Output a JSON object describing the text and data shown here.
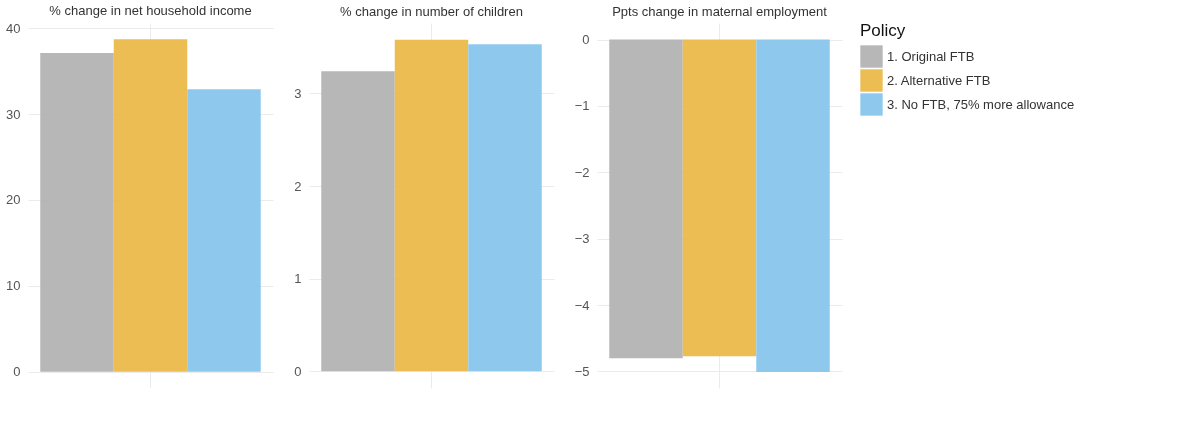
{
  "chart_data": [
    {
      "type": "bar",
      "title": "% change in net household income",
      "categories": [
        null
      ],
      "ylim": [
        -1.9,
        40.6
      ],
      "yticks": [
        0,
        10,
        20,
        30,
        40
      ],
      "grid": true,
      "series": [
        {
          "color": "#b3b3b3",
          "values": [
            37.1
          ]
        },
        {
          "color": "#ebb94a",
          "values": [
            38.7
          ]
        },
        {
          "color": "#88c6ec",
          "values": [
            32.9
          ]
        }
      ]
    },
    {
      "type": "bar",
      "title": "% change in number of children",
      "categories": [
        null
      ],
      "ylim": [
        -0.18,
        3.76
      ],
      "yticks": [
        0,
        1,
        2,
        3
      ],
      "grid": true,
      "series": [
        {
          "color": "#b3b3b3",
          "values": [
            3.24
          ]
        },
        {
          "color": "#ebb94a",
          "values": [
            3.58
          ]
        },
        {
          "color": "#88c6ec",
          "values": [
            3.53
          ]
        }
      ]
    },
    {
      "type": "bar",
      "title": "Ppts change in maternal employment",
      "categories": [
        null
      ],
      "ylim": [
        -5.25,
        0.25
      ],
      "yticks": [
        -5,
        -4,
        -3,
        -2,
        -1,
        0
      ],
      "grid": true,
      "legend": "right",
      "legend_title": "Policy",
      "series": [
        {
          "name": "1. Original FTB",
          "color": "#b3b3b3",
          "values": [
            -4.8
          ]
        },
        {
          "name": "2. Alternative FTB",
          "color": "#ebb94a",
          "values": [
            -4.77
          ]
        },
        {
          "name": "3. No FTB, 75% more allowance",
          "color": "#88c6ec",
          "values": [
            -5.01
          ]
        }
      ]
    }
  ]
}
